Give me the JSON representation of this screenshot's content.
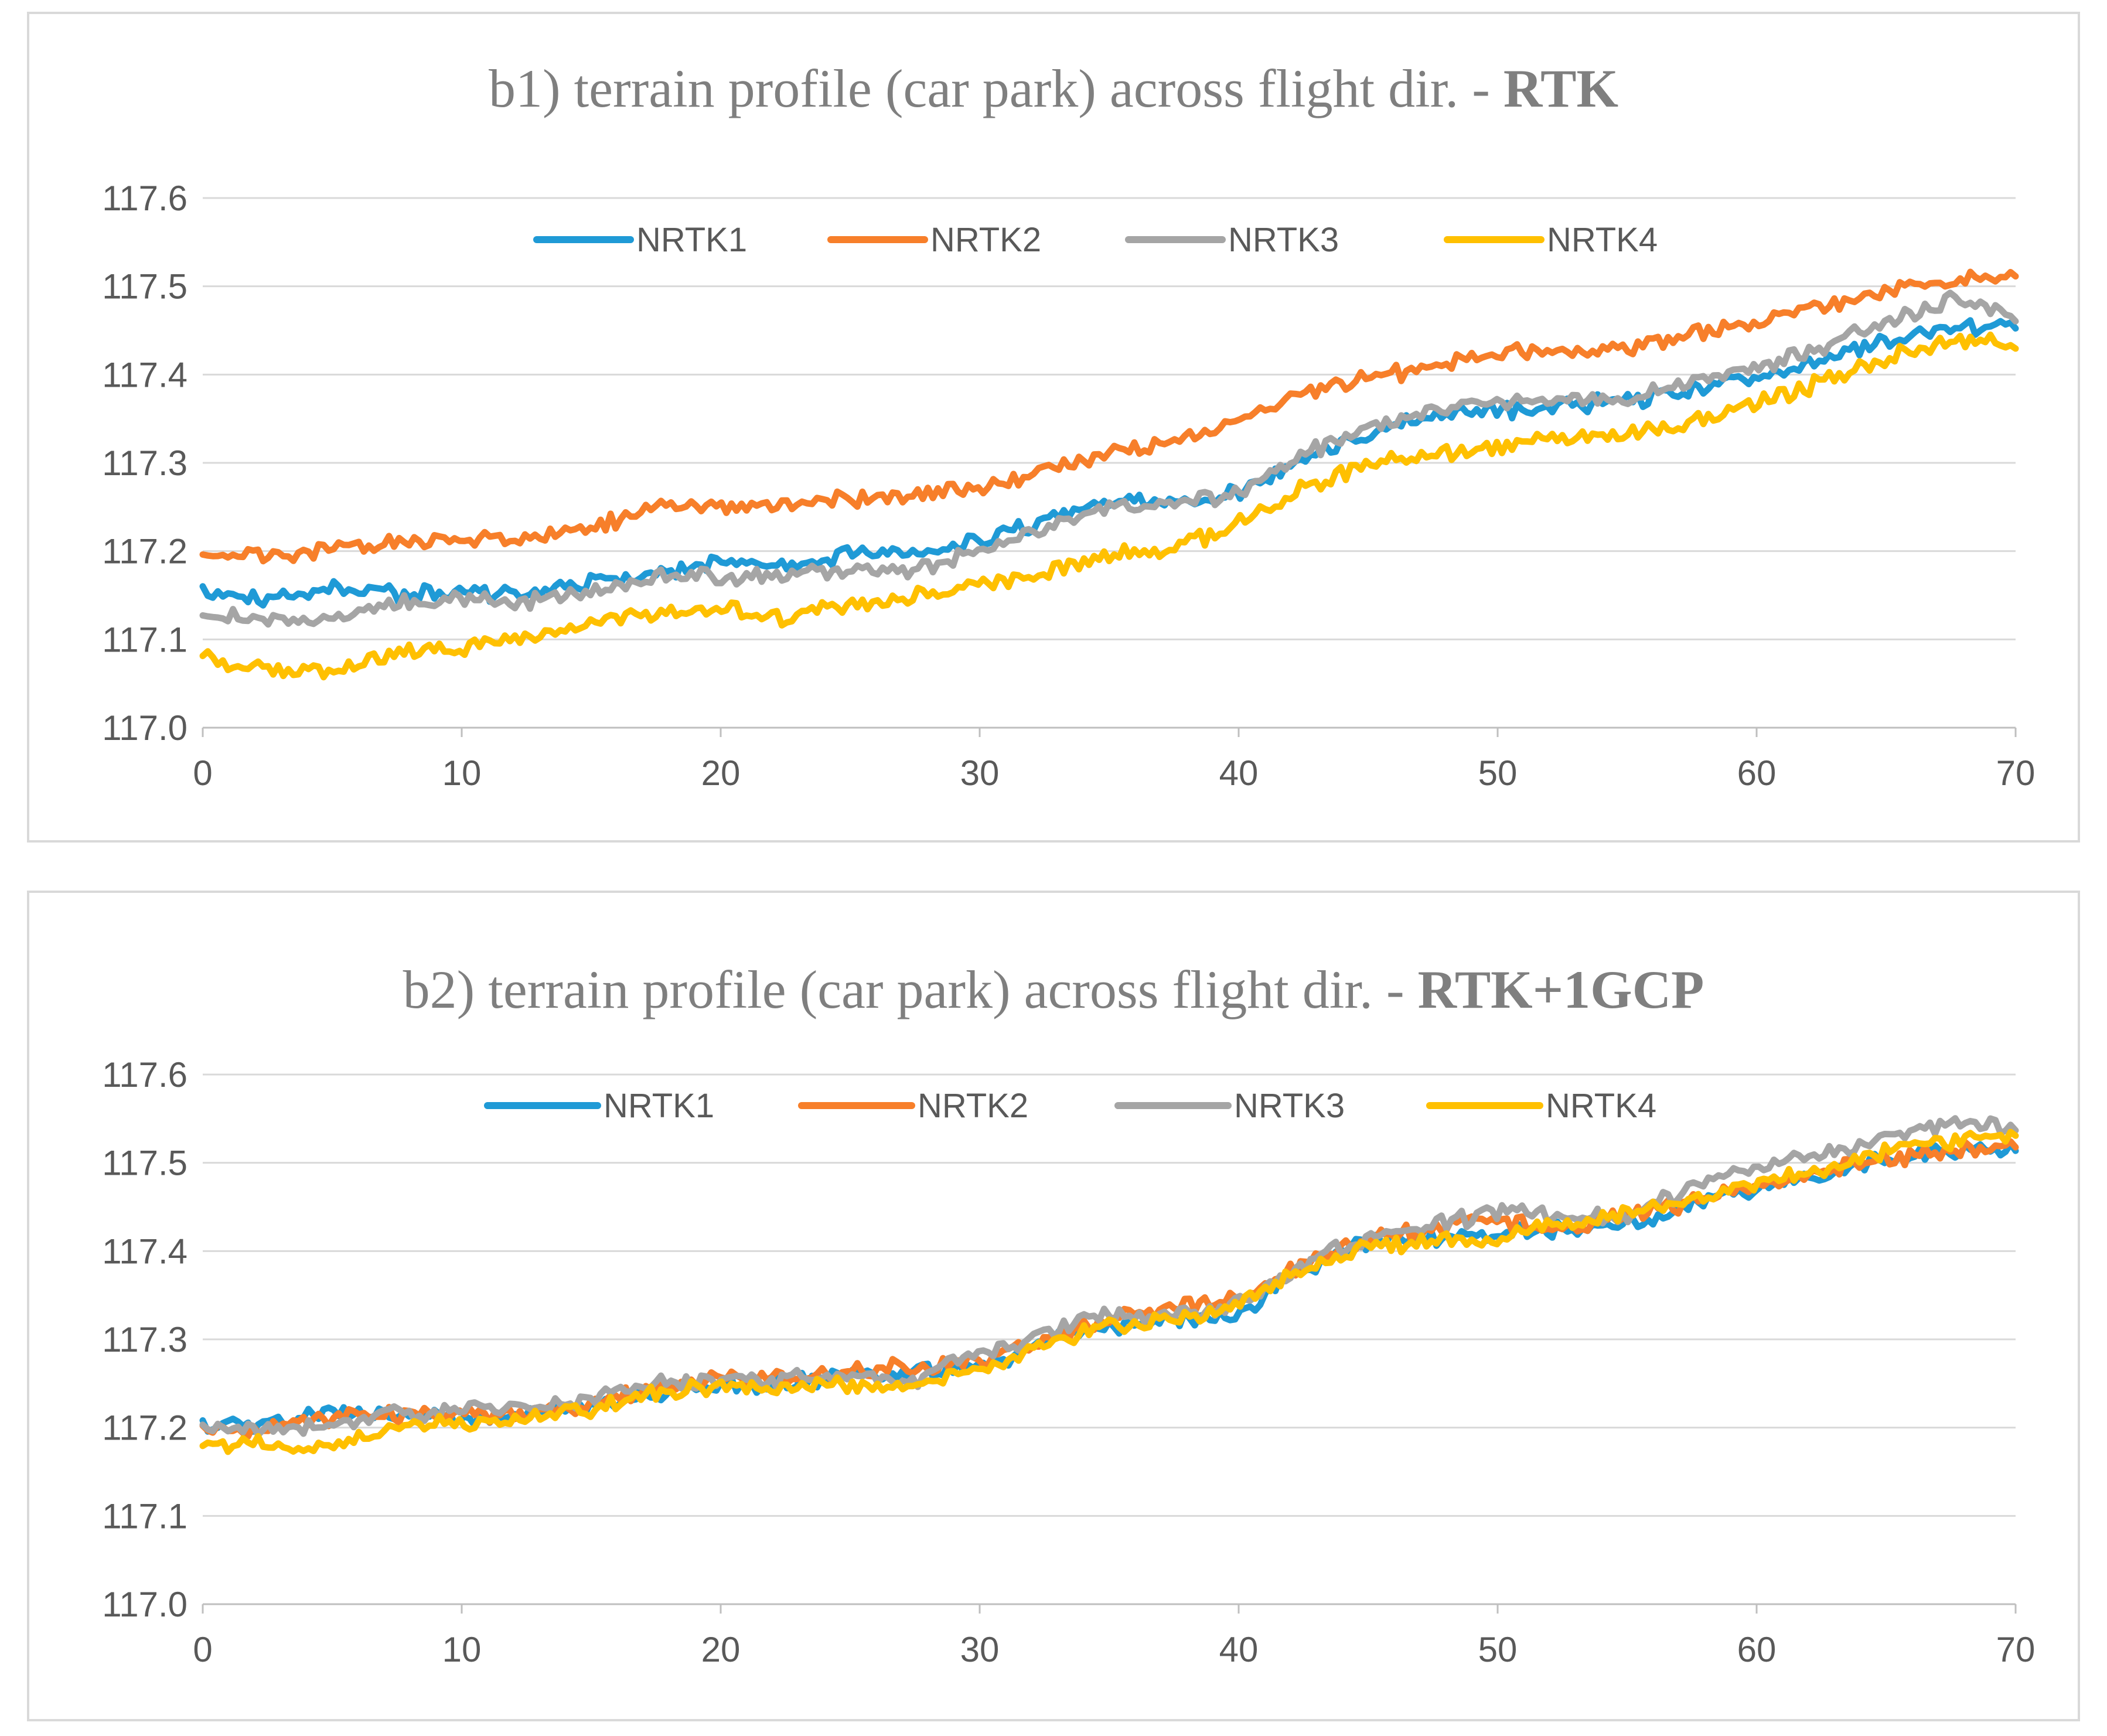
{
  "chart_data": [
    {
      "type": "line",
      "title": "b1) terrain profile (car park) across flight dir. - ",
      "title_bold": "RTK",
      "xlabel": "",
      "ylabel": "",
      "xlim": [
        0,
        70
      ],
      "ylim": [
        117.0,
        117.6
      ],
      "x_ticks": [
        "0",
        "10",
        "20",
        "30",
        "40",
        "50",
        "60",
        "70"
      ],
      "y_ticks": [
        "117.0",
        "117.1",
        "117.2",
        "117.3",
        "117.4",
        "117.5",
        "117.6"
      ],
      "grid": "horizontal",
      "legend": "top",
      "x": [
        0,
        2.5,
        5,
        7.5,
        10,
        12.5,
        15,
        17.5,
        20,
        22.5,
        25,
        27.5,
        30,
        32.5,
        35,
        37.5,
        40,
        42.5,
        45,
        47.5,
        50,
        52.5,
        55,
        57.5,
        60,
        62.5,
        65,
        67.5,
        70
      ],
      "series": [
        {
          "name": "NRTK1",
          "color": "#1f9ad6",
          "values": [
            117.155,
            117.145,
            117.16,
            117.15,
            117.155,
            117.15,
            117.165,
            117.175,
            117.185,
            117.18,
            117.2,
            117.2,
            117.21,
            117.235,
            117.26,
            117.255,
            117.265,
            117.305,
            117.335,
            117.35,
            117.36,
            117.365,
            117.37,
            117.38,
            117.4,
            117.415,
            117.44,
            117.455,
            117.455
          ]
        },
        {
          "name": "NRTK2",
          "color": "#f77f2a",
          "values": [
            117.195,
            117.195,
            117.2,
            117.21,
            117.215,
            117.215,
            117.225,
            117.25,
            117.25,
            117.25,
            117.26,
            117.265,
            117.27,
            117.29,
            117.31,
            117.325,
            117.345,
            117.38,
            117.395,
            117.41,
            117.425,
            117.425,
            117.43,
            117.445,
            117.46,
            117.475,
            117.495,
            117.505,
            117.515
          ]
        },
        {
          "name": "NRTK3",
          "color": "#a5a5a5",
          "values": [
            117.13,
            117.12,
            117.125,
            117.14,
            117.145,
            117.145,
            117.155,
            117.17,
            117.17,
            117.175,
            117.18,
            117.18,
            117.2,
            117.225,
            117.25,
            117.255,
            117.265,
            117.31,
            117.34,
            117.36,
            117.37,
            117.37,
            117.375,
            117.39,
            117.41,
            117.43,
            117.46,
            117.485,
            117.465
          ]
        },
        {
          "name": "NRTK4",
          "color": "#ffc000",
          "values": [
            117.08,
            117.065,
            117.06,
            117.085,
            117.09,
            117.1,
            117.12,
            117.13,
            117.135,
            117.125,
            117.14,
            117.15,
            117.16,
            117.175,
            117.195,
            117.205,
            117.23,
            117.27,
            117.3,
            117.305,
            117.32,
            117.33,
            117.33,
            117.345,
            117.37,
            117.39,
            117.42,
            117.44,
            117.435
          ]
        }
      ]
    },
    {
      "type": "line",
      "title": "b2) terrain profile (car park) across flight dir. - ",
      "title_bold": "RTK+1GCP",
      "xlabel": "",
      "ylabel": "",
      "xlim": [
        0,
        70
      ],
      "ylim": [
        117.0,
        117.6
      ],
      "x_ticks": [
        "0",
        "10",
        "20",
        "30",
        "40",
        "50",
        "60",
        "70"
      ],
      "y_ticks": [
        "117.0",
        "117.1",
        "117.2",
        "117.3",
        "117.4",
        "117.5",
        "117.6"
      ],
      "grid": "horizontal",
      "legend": "top",
      "x": [
        0,
        2.5,
        5,
        7.5,
        10,
        12.5,
        15,
        17.5,
        20,
        22.5,
        25,
        27.5,
        30,
        32.5,
        35,
        37.5,
        40,
        42.5,
        45,
        47.5,
        50,
        52.5,
        55,
        57.5,
        60,
        62.5,
        65,
        67.5,
        70
      ],
      "series": [
        {
          "name": "NRTK1",
          "color": "#1f9ad6",
          "values": [
            117.205,
            117.205,
            117.215,
            117.215,
            117.21,
            117.215,
            117.225,
            117.24,
            117.245,
            117.25,
            117.26,
            117.26,
            117.27,
            117.295,
            117.315,
            117.32,
            117.33,
            117.38,
            117.41,
            117.415,
            117.42,
            117.425,
            117.43,
            117.45,
            117.47,
            117.485,
            117.505,
            117.515,
            117.515
          ]
        },
        {
          "name": "NRTK2",
          "color": "#f77f2a",
          "values": [
            117.195,
            117.2,
            117.21,
            117.215,
            117.215,
            117.215,
            117.225,
            117.245,
            117.255,
            117.255,
            117.265,
            117.27,
            117.275,
            117.3,
            117.325,
            117.335,
            117.345,
            117.385,
            117.415,
            117.425,
            117.435,
            117.425,
            117.44,
            117.455,
            117.475,
            117.49,
            117.505,
            117.515,
            117.52
          ]
        },
        {
          "name": "NRTK3",
          "color": "#a5a5a5",
          "values": [
            117.2,
            117.2,
            117.205,
            117.215,
            117.22,
            117.225,
            117.235,
            117.25,
            117.25,
            117.255,
            117.26,
            117.255,
            117.285,
            117.305,
            117.33,
            117.325,
            117.34,
            117.385,
            117.415,
            117.43,
            117.445,
            117.44,
            117.44,
            117.47,
            117.495,
            117.51,
            117.53,
            117.545,
            117.54
          ]
        },
        {
          "name": "NRTK4",
          "color": "#ffc000",
          "values": [
            117.18,
            117.18,
            117.175,
            117.2,
            117.205,
            117.21,
            117.22,
            117.24,
            117.245,
            117.245,
            117.25,
            117.25,
            117.265,
            117.29,
            117.315,
            117.32,
            117.34,
            117.38,
            117.405,
            117.41,
            117.415,
            117.43,
            117.445,
            117.455,
            117.48,
            117.49,
            117.515,
            117.525,
            117.535
          ]
        }
      ]
    }
  ]
}
